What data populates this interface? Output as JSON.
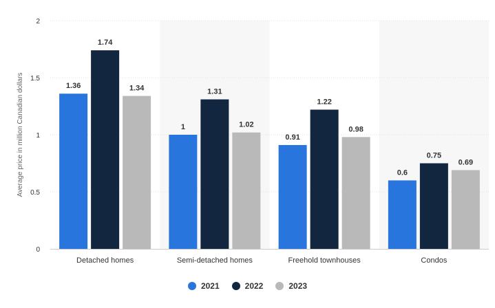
{
  "chart_data": {
    "type": "bar",
    "title": "",
    "xlabel": "",
    "ylabel": "Average price in million Canadian dollars",
    "ylim": [
      0,
      2
    ],
    "yticks": [
      0,
      0.5,
      1,
      1.5,
      2
    ],
    "ytick_labels": [
      "0",
      "0.5",
      "1",
      "1.5",
      "2"
    ],
    "grid": true,
    "legend_position": "bottom",
    "categories": [
      "Detached homes",
      "Semi-detached homes",
      "Freehold townhouses",
      "Condos"
    ],
    "series": [
      {
        "name": "2021",
        "color": "#2876dd",
        "values": [
          1.36,
          1,
          0.91,
          0.6
        ],
        "labels": [
          "1.36",
          "1",
          "0.91",
          "0.6"
        ]
      },
      {
        "name": "2022",
        "color": "#12263f",
        "values": [
          1.74,
          1.31,
          1.22,
          0.75
        ],
        "labels": [
          "1.74",
          "1.31",
          "1.22",
          "0.75"
        ]
      },
      {
        "name": "2023",
        "color": "#b9b9b9",
        "values": [
          1.34,
          1.02,
          0.98,
          0.69
        ],
        "labels": [
          "1.34",
          "1.02",
          "0.98",
          "0.69"
        ]
      }
    ]
  }
}
